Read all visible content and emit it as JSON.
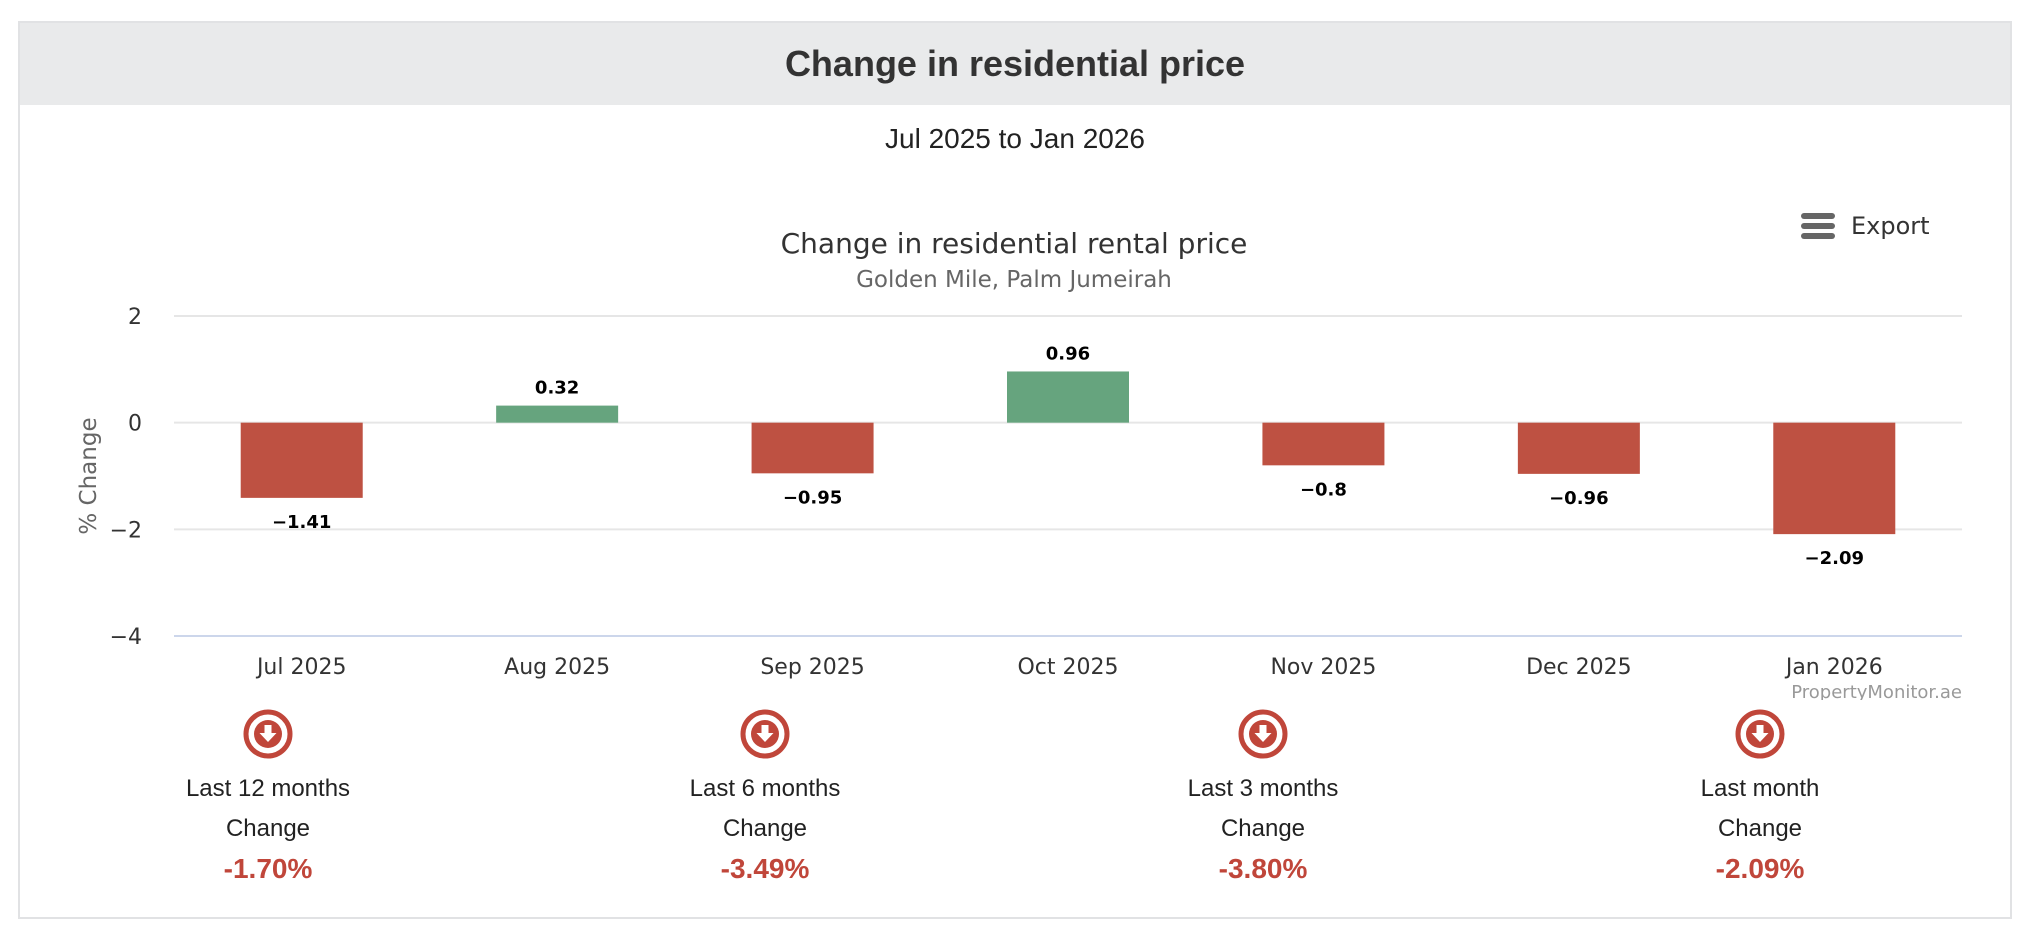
{
  "panel": {
    "title": "Change in residential price",
    "period": "Jul 2025 to Jan 2026"
  },
  "export": {
    "label": "Export",
    "icon": "hamburger-menu-icon"
  },
  "colors": {
    "positive": "#66a47e",
    "negative": "#be5142",
    "stat_value": "#c0463a",
    "grid": "#e6e6e6"
  },
  "chart_data": {
    "type": "bar",
    "title": "Change in residential rental price",
    "subtitle": "Golden Mile, Palm Jumeirah",
    "ylabel": "% Change",
    "xlabel": "",
    "ylim": [
      -4,
      2
    ],
    "yticks": [
      2,
      0,
      -2,
      -4
    ],
    "ytick_labels": [
      "2",
      "0",
      "−2",
      "−4"
    ],
    "categories": [
      "Jul 2025",
      "Aug 2025",
      "Sep 2025",
      "Oct 2025",
      "Nov 2025",
      "Dec 2025",
      "Jan 2026"
    ],
    "values": [
      -1.41,
      0.32,
      -0.95,
      0.96,
      -0.8,
      -0.96,
      -2.09
    ],
    "data_labels": [
      "−1.41",
      "0.32",
      "−0.95",
      "0.96",
      "−0.8",
      "−0.96",
      "−2.09"
    ],
    "grid": true,
    "credits": "PropertyMonitor.ae"
  },
  "stats": [
    {
      "period": "Last 12 months",
      "caption": "Change",
      "value": "-1.70%",
      "icon": "arrow-down-circle-icon"
    },
    {
      "period": "Last 6 months",
      "caption": "Change",
      "value": "-3.49%",
      "icon": "arrow-down-circle-icon"
    },
    {
      "period": "Last 3 months",
      "caption": "Change",
      "value": "-3.80%",
      "icon": "arrow-down-circle-icon"
    },
    {
      "period": "Last month",
      "caption": "Change",
      "value": "-2.09%",
      "icon": "arrow-down-circle-icon"
    }
  ]
}
